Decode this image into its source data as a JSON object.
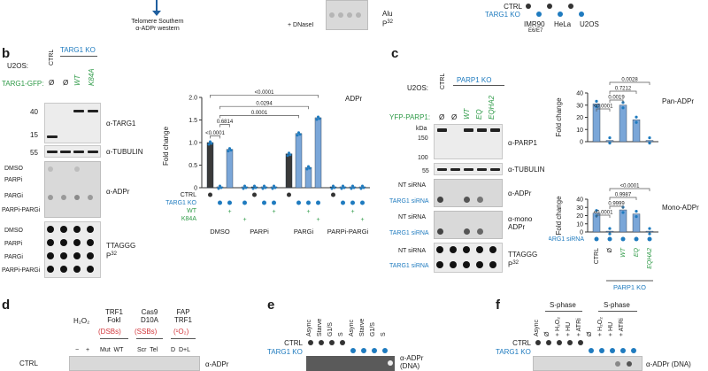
{
  "top": {
    "arrow_label": "Telomere Southern\nα-ADPr western",
    "dnasei_label": "+ DNaseI",
    "alu_label": "Alu",
    "alu_super": "32",
    "alu_p": "P",
    "ctrl_label": "CTRL",
    "targ1ko_label": "TARG1 KO",
    "cells": [
      "IMR90",
      "HeLa",
      "U2OS"
    ],
    "imr90_sub": "E6/E7"
  },
  "panel_b": {
    "letter": "b",
    "u2os": "U2OS:",
    "ctrl": "CTRL",
    "targ1ko": "TARG1 KO",
    "gfp": "TARG1-GFP:",
    "lane_labels": [
      "Ø",
      "Ø",
      "WT",
      "K84A"
    ],
    "mw": [
      "40",
      "15",
      "55"
    ],
    "ab_targ1": "α-TARG1",
    "ab_tubulin": "α-TUBULIN",
    "ab_adpr": "α-ADPr",
    "treat_rows": [
      "DMSO",
      "PARPi",
      "PARGi",
      "PARPi-PARGi"
    ],
    "ttaggg": "TTAGGG",
    "p32": "P",
    "p32_super": "32"
  },
  "chart_b": {
    "title": "ADPr",
    "ylabel": "Fold change",
    "yticks": [
      "0",
      "0.5",
      "1.0",
      "1.5",
      "2.0"
    ],
    "ymax": 2.0,
    "groups": [
      "DMSO",
      "PARPi",
      "PARGi",
      "PARPi-PARGi"
    ],
    "row_ctrl": "CTRL",
    "row_targ1ko": "TARG1 KO",
    "row_wt": "WT",
    "row_k84a": "K84A",
    "values": [
      1.0,
      0.02,
      0.85,
      0.02,
      0.02,
      0.02,
      0.02,
      0.75,
      1.2,
      0.45,
      1.55,
      0.02,
      0.02,
      0.02,
      0.02
    ],
    "kinds": [
      "ctrl",
      "ko",
      "wt",
      "k84a",
      "ctrl",
      "ko",
      "wt",
      "ctrl",
      "ko",
      "wt",
      "k84a",
      "ctrl",
      "ko",
      "wt",
      "k84a"
    ],
    "pvals": [
      "<0.0001",
      "0.6814",
      "0.0001",
      "0.0294",
      "<0.0001"
    ],
    "colors": {
      "bar": "#7aa6d8",
      "ctrl_bar": "#3a3a3a",
      "dot": "#1f7bbf"
    }
  },
  "panel_c": {
    "letter": "c",
    "u2os": "U2OS:",
    "ctrl": "CTRL",
    "parp1ko": "PARP1 KO",
    "yfp": "YFP-PARP1:",
    "lane_labels": [
      "Ø",
      "Ø",
      "WT",
      "EQ",
      "EQHA2"
    ],
    "mw": [
      "kDa",
      "150",
      "100",
      "55"
    ],
    "ab_parp1": "α-PARP1",
    "ab_tubulin": "α-TUBULIN",
    "ab_adpr": "α-ADPr",
    "ab_mono": "α-mono\nADPr",
    "nt": "NT siRNA",
    "targ1si": "TARG1 siRNA",
    "ttaggg": "TTAGGG",
    "p32": "P",
    "p32_super": "32"
  },
  "chart_c": {
    "ylabel": "Fold change",
    "pan_title": "Pan-ADPr",
    "mono_title": "Mono-ADPr",
    "pan_yticks": [
      "0",
      "10",
      "20",
      "30",
      "40"
    ],
    "mono_yticks": [
      "0",
      "10",
      "20",
      "30",
      "40"
    ],
    "pan_values": [
      31,
      1,
      30,
      18,
      1
    ],
    "mono_values": [
      23,
      1,
      27,
      22,
      1
    ],
    "pan_pvals": [
      "<0.0001",
      "0.0019",
      "0.7212",
      "0.0028"
    ],
    "mono_pvals": [
      "<0.0001",
      "0.9999",
      "0.9987",
      "<0.0001"
    ],
    "x_labels": [
      "CTRL",
      "Ø",
      "WT",
      "EQ",
      "EQHA2"
    ],
    "targ1_sirna": "TARG1 siRNA",
    "parp1ko": "PARP1 KO"
  },
  "panel_d": {
    "letter": "d",
    "h2o2": "H₂O₂",
    "minus": "−",
    "plus": "+",
    "trf1foki": "TRF1\nFokI",
    "mutwt": "Mut  WT",
    "dsbs": "(DSBs)",
    "cas9": "Cas9\nD10A",
    "scrtel": "Scr  Tel",
    "ssbs": "(SSBs)",
    "fap": "FAP\nTRF1",
    "ddl": "D  D+L",
    "o2": "(¹O₂)",
    "ctrl": "CTRL",
    "ab": "α-ADPr"
  },
  "panel_e": {
    "letter": "e",
    "cols": [
      "Async",
      "Starve",
      "G1/S",
      "S",
      "Async",
      "Starve",
      "G1/S",
      "S"
    ],
    "ctrl": "CTRL",
    "targ1ko": "TARG1 KO",
    "ab": "α-ADPr\n(DNA)"
  },
  "panel_f": {
    "letter": "f",
    "sphase": "S-phase",
    "cols": [
      "Async",
      "Ø",
      "+ H₂O₂",
      "+ HU",
      "+ ATRi",
      "Ø",
      "+ H₂O₂",
      "+ HU",
      "+ ATRi"
    ],
    "ctrl": "CTRL",
    "targ1ko": "TARG1 KO",
    "ab": "α-ADPr (DNA)"
  }
}
